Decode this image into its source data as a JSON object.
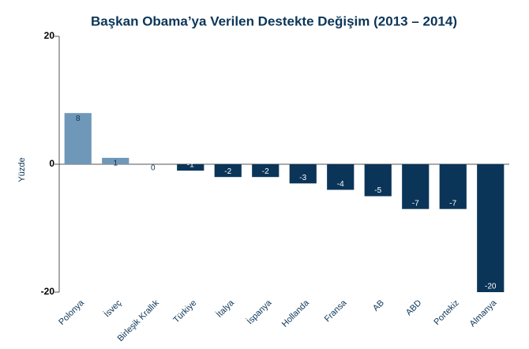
{
  "chart_data": {
    "type": "bar",
    "title": "Başkan Obama’ya Verilen Destekte Değişim (2013 – 2014)",
    "y_label": "Yüzde",
    "categories": [
      "Polonya",
      "İsveç",
      "Birleşik Krallık",
      "Türkiye",
      "İtalya",
      "İspanya",
      "Hollanda",
      "Fransa",
      "AB",
      "ABD",
      "Portekiz",
      "Almanya"
    ],
    "values": [
      8,
      1,
      0,
      -1,
      -2,
      -2,
      -3,
      -4,
      -5,
      -7,
      -7,
      -20
    ],
    "color_positive": "#6f97b8",
    "color_negative": "#0b3558",
    "ylim": [
      -20,
      20
    ],
    "yticks": [
      -20,
      0,
      20
    ]
  }
}
